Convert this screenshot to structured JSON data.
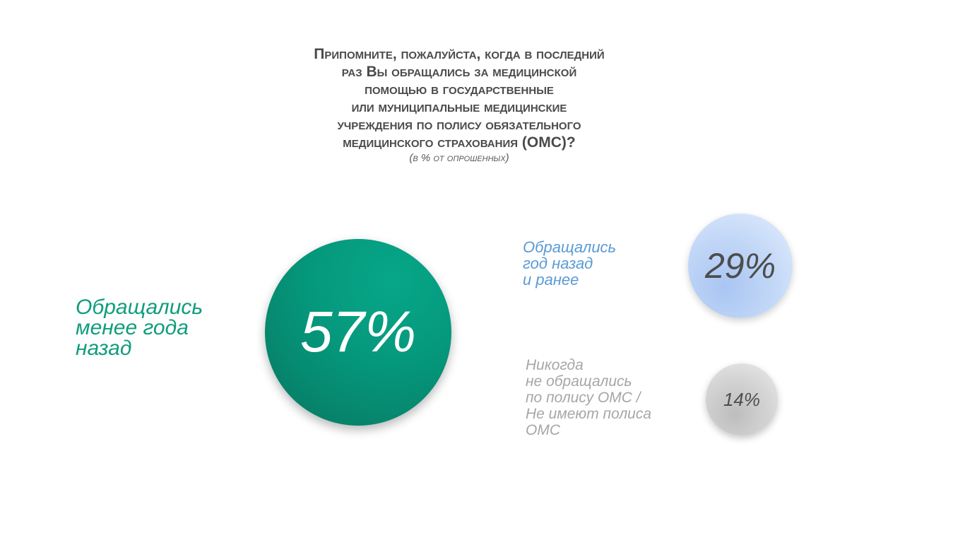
{
  "chart_data": {
    "type": "bubble",
    "title_lines": [
      "Припомните, пожалуйста, когда в последний",
      "раз Вы обращались за медицинской",
      "помощью в государственные",
      "или муниципальные медицинские",
      "учреждения по полису обязательного",
      "медицинского страхования (ОМС)?"
    ],
    "subtitle": "(в % от опрошенных)",
    "items": [
      {
        "label_lines": [
          "Обращались",
          "менее года",
          "назад"
        ],
        "value": 57,
        "display": "57%",
        "color": "#06977b"
      },
      {
        "label_lines": [
          "Обращались",
          "год назад",
          "и ранее"
        ],
        "value": 29,
        "display": "29%",
        "color": "#b8cff4"
      },
      {
        "label_lines": [
          "Никогда",
          "не обращались",
          "по полису ОМС /",
          "Не имеют полиса",
          "ОМС"
        ],
        "value": 14,
        "display": "14%",
        "color": "#d0d0d0"
      }
    ]
  }
}
